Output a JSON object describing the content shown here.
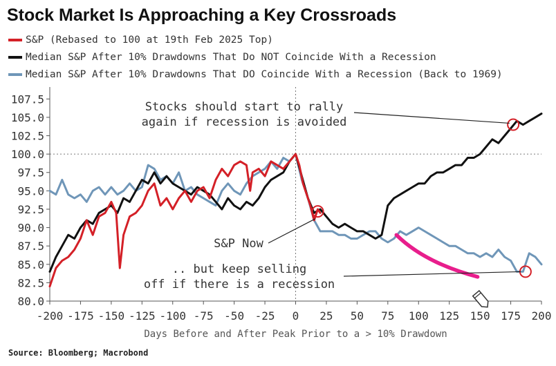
{
  "title": "Stock Market Is Approaching a Key Crossroads",
  "source": "Source: Bloomberg; Macrobond",
  "colors": {
    "sp": "#d42027",
    "no_recession": "#111111",
    "recession": "#6f96b8",
    "highlight": "#e81e8c",
    "circle": "#d42027"
  },
  "chart_data": {
    "type": "line",
    "x_label": "Days Before and After Peak Prior to a > 10% Drawdown",
    "xlim": [
      -200,
      200
    ],
    "ylim": [
      80,
      108.75
    ],
    "x_ticks": [
      "-200",
      "-175",
      "-150",
      "-125",
      "-100",
      "-75",
      "-50",
      "-25",
      "0",
      "25",
      "50",
      "75",
      "100",
      "125",
      "150",
      "175",
      "200"
    ],
    "y_ticks": [
      "107.5",
      "105.0",
      "102.5",
      "100.0",
      "97.5",
      "95.0",
      "92.5",
      "90.0",
      "87.5",
      "85.0",
      "82.5",
      "80.0"
    ],
    "reference_y": 100,
    "reference_x": 0,
    "series": [
      {
        "name": "S&P (Rebased to 100 at 19th Feb 2025 Top)",
        "color_key": "sp",
        "x": [
          -200,
          -195,
          -190,
          -185,
          -180,
          -175,
          -170,
          -165,
          -160,
          -155,
          -150,
          -146,
          -143,
          -140,
          -135,
          -130,
          -125,
          -120,
          -115,
          -110,
          -105,
          -100,
          -95,
          -90,
          -85,
          -80,
          -75,
          -70,
          -65,
          -60,
          -55,
          -50,
          -45,
          -40,
          -37,
          -35,
          -30,
          -25,
          -20,
          -15,
          -10,
          -5,
          0,
          3,
          6,
          9,
          12,
          15,
          18,
          20
        ],
        "y": [
          82,
          84.5,
          85.5,
          86,
          87,
          88.5,
          91,
          89,
          91.5,
          92,
          93.5,
          92,
          84.5,
          89,
          91.5,
          92,
          93,
          95,
          96,
          93,
          94,
          92.5,
          94,
          95,
          93.5,
          95,
          95.5,
          94,
          96.5,
          98,
          97,
          98.5,
          99,
          98.5,
          95,
          97.5,
          98,
          97,
          99,
          98.5,
          98,
          99,
          100,
          98.5,
          96,
          94.5,
          93,
          91,
          92.5,
          92
        ]
      },
      {
        "name": "Median S&P After 10% Drawdowns That Do NOT Coincide With a Recession",
        "color_key": "no_recession",
        "x": [
          -200,
          -195,
          -190,
          -185,
          -180,
          -175,
          -170,
          -165,
          -160,
          -155,
          -150,
          -145,
          -140,
          -135,
          -130,
          -125,
          -120,
          -115,
          -110,
          -105,
          -100,
          -95,
          -90,
          -85,
          -80,
          -75,
          -70,
          -65,
          -60,
          -55,
          -50,
          -45,
          -40,
          -35,
          -30,
          -25,
          -20,
          -15,
          -10,
          -5,
          0,
          5,
          10,
          15,
          20,
          25,
          30,
          35,
          40,
          45,
          50,
          55,
          60,
          65,
          70,
          75,
          80,
          85,
          90,
          95,
          100,
          105,
          110,
          115,
          120,
          125,
          130,
          135,
          140,
          145,
          150,
          155,
          160,
          165,
          170,
          175,
          180,
          185,
          190,
          195,
          200
        ],
        "y": [
          84,
          86,
          87.5,
          89,
          88.5,
          90,
          91,
          90.5,
          92,
          92.5,
          93,
          92,
          94,
          93.5,
          95,
          96.5,
          96,
          97.5,
          96,
          97,
          96,
          95.5,
          95,
          94.5,
          95.5,
          95,
          94.5,
          93.5,
          92.5,
          94,
          93,
          92.5,
          93.5,
          93,
          94,
          95.5,
          96.5,
          97,
          97.5,
          99,
          100,
          97,
          94,
          92,
          92.5,
          91.5,
          90.5,
          90,
          90.5,
          90,
          89.5,
          89.5,
          89,
          88.5,
          89,
          93,
          94,
          94.5,
          95,
          95.5,
          96,
          96,
          97,
          97.5,
          97.5,
          98,
          98.5,
          98.5,
          99.5,
          99.5,
          100,
          101,
          102,
          101.5,
          102.5,
          103.5,
          104.5,
          104,
          104.5,
          105,
          105.5
        ]
      },
      {
        "name": "Median S&P After 10% Drawdowns That DO Coincide With a Recession (Back to 1969)",
        "color_key": "recession",
        "x": [
          -200,
          -195,
          -190,
          -185,
          -180,
          -175,
          -170,
          -165,
          -160,
          -155,
          -150,
          -145,
          -140,
          -135,
          -130,
          -125,
          -120,
          -115,
          -110,
          -105,
          -100,
          -95,
          -90,
          -85,
          -80,
          -75,
          -70,
          -65,
          -60,
          -55,
          -50,
          -45,
          -40,
          -35,
          -30,
          -25,
          -20,
          -15,
          -10,
          -5,
          0,
          5,
          10,
          15,
          20,
          25,
          30,
          35,
          40,
          45,
          50,
          55,
          60,
          65,
          70,
          75,
          80,
          85,
          90,
          95,
          100,
          105,
          110,
          115,
          120,
          125,
          130,
          135,
          140,
          145,
          150,
          155,
          160,
          165,
          170,
          175,
          180,
          185,
          190,
          195,
          200
        ],
        "y": [
          95,
          94.5,
          96.5,
          94.5,
          94,
          94.5,
          93.5,
          95,
          95.5,
          94.5,
          95.5,
          94.5,
          95,
          96,
          95,
          95.5,
          98.5,
          98,
          96.5,
          97,
          96,
          97.5,
          95,
          95.5,
          94.5,
          94,
          93.5,
          93,
          95,
          96,
          95,
          94.5,
          96,
          97,
          97.5,
          98,
          99,
          98,
          99.5,
          99,
          100,
          96.5,
          94,
          91,
          89.5,
          89.5,
          89.5,
          89,
          89,
          88.5,
          88.5,
          89,
          89.5,
          89.5,
          88.5,
          88,
          88.5,
          89.5,
          89,
          89.5,
          90,
          89.5,
          89,
          88.5,
          88,
          87.5,
          87.5,
          87,
          86.5,
          86.5,
          86,
          86.5,
          86,
          87,
          86,
          85.5,
          84,
          84,
          86.5,
          86,
          85
        ]
      }
    ],
    "annotations": [
      {
        "lines": [
          "Stocks should start to rally",
          "again if recession is avoided"
        ]
      },
      {
        "lines": [
          "S&P Now"
        ]
      },
      {
        "lines": [
          ".. but keep selling",
          "off if there is a recession"
        ]
      }
    ]
  }
}
